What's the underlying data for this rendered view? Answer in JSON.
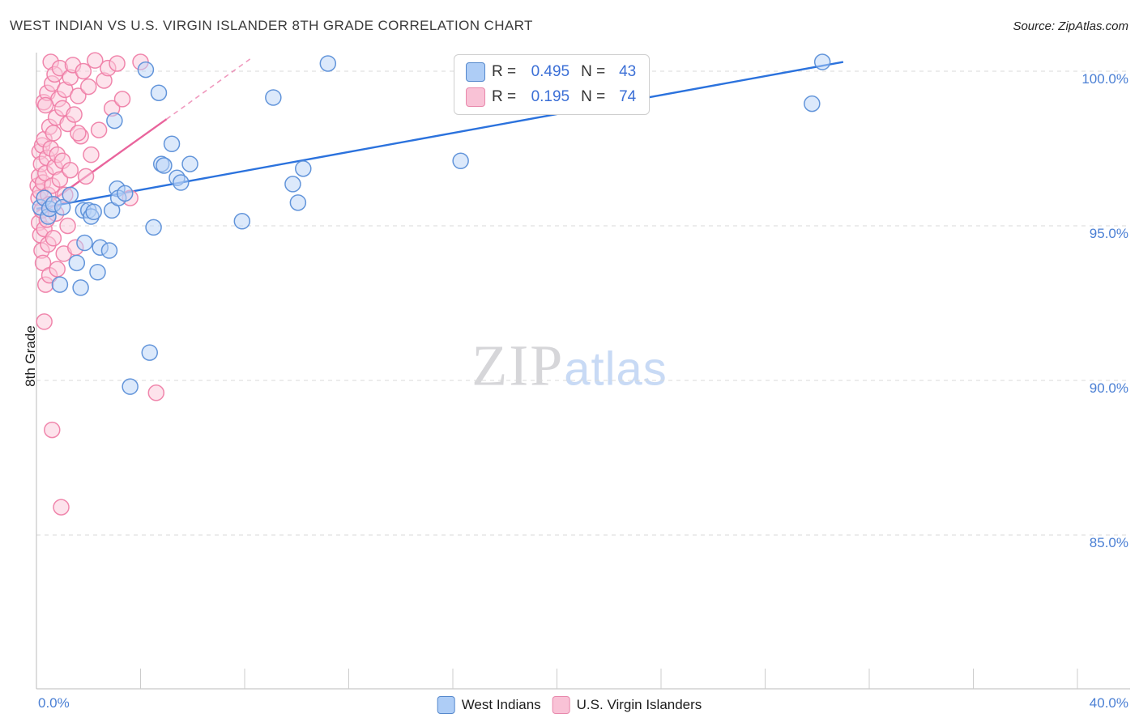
{
  "header": {
    "title": "WEST INDIAN VS U.S. VIRGIN ISLANDER 8TH GRADE CORRELATION CHART",
    "source": "Source: ZipAtlas.com"
  },
  "top_legend": {
    "rows": [
      {
        "r_label": "R =",
        "r_value": "0.495",
        "n_label": "N =",
        "n_value": "43"
      },
      {
        "r_label": "R =",
        "r_value": "0.195",
        "n_label": "N =",
        "n_value": "74"
      }
    ]
  },
  "axes": {
    "ylabel": "8th Grade",
    "x_tick_left": "0.0%",
    "x_tick_right": "40.0%",
    "y_tick_labels": [
      "100.0%",
      "95.0%",
      "90.0%",
      "85.0%"
    ]
  },
  "bottom_legend": {
    "items": [
      {
        "label": "West Indians"
      },
      {
        "label": "U.S. Virgin Islanders"
      }
    ]
  },
  "watermark": {
    "zip": "ZIP",
    "atlas": "atlas"
  },
  "chart_data": {
    "type": "scatter",
    "title": "WEST INDIAN VS U.S. VIRGIN ISLANDER 8TH GRADE CORRELATION CHART",
    "xlabel": "",
    "ylabel": "8th Grade",
    "xlim": [
      0,
      40
    ],
    "ylim": [
      80,
      100.5
    ],
    "x_tick_labels": [
      "0.0%",
      "40.0%"
    ],
    "y_gridlines": [
      100,
      95,
      90,
      85
    ],
    "grid": "horizontal-dashed",
    "legend_position": "bottom-center",
    "series": [
      {
        "name": "U.S. Virgin Islanders",
        "R": 0.195,
        "N": 74,
        "stroke": "#ef7fa8",
        "fill": "#fbc7da",
        "line_color": "#e9649c",
        "trend": {
          "x1": 0,
          "y1": 95.45,
          "x2": 5.0,
          "y2": 98.45
        },
        "trend_dashed": {
          "x1": 5.0,
          "y1": 98.45,
          "x2": 8.3,
          "y2": 100.45
        },
        "points": [
          [
            0.05,
            96.3
          ],
          [
            0.08,
            95.9
          ],
          [
            0.1,
            96.6
          ],
          [
            0.1,
            95.1
          ],
          [
            0.12,
            97.4
          ],
          [
            0.15,
            96.1
          ],
          [
            0.15,
            94.7
          ],
          [
            0.18,
            97.0
          ],
          [
            0.2,
            95.5
          ],
          [
            0.2,
            94.2
          ],
          [
            0.22,
            97.6
          ],
          [
            0.25,
            96.4
          ],
          [
            0.25,
            93.8
          ],
          [
            0.28,
            99.0
          ],
          [
            0.3,
            97.8
          ],
          [
            0.3,
            94.9
          ],
          [
            0.3,
            91.9
          ],
          [
            0.35,
            96.7
          ],
          [
            0.35,
            93.1
          ],
          [
            0.4,
            97.2
          ],
          [
            0.4,
            95.2
          ],
          [
            0.42,
            99.3
          ],
          [
            0.45,
            96.0
          ],
          [
            0.45,
            94.4
          ],
          [
            0.5,
            98.2
          ],
          [
            0.5,
            95.7
          ],
          [
            0.5,
            93.4
          ],
          [
            0.55,
            100.3
          ],
          [
            0.55,
            97.5
          ],
          [
            0.6,
            99.6
          ],
          [
            0.6,
            96.3
          ],
          [
            0.6,
            88.4
          ],
          [
            0.65,
            98.0
          ],
          [
            0.65,
            94.6
          ],
          [
            0.7,
            99.9
          ],
          [
            0.7,
            96.9
          ],
          [
            0.75,
            98.5
          ],
          [
            0.75,
            95.4
          ],
          [
            0.8,
            97.3
          ],
          [
            0.8,
            93.6
          ],
          [
            0.85,
            99.1
          ],
          [
            0.9,
            100.1
          ],
          [
            0.9,
            96.5
          ],
          [
            0.95,
            85.9
          ],
          [
            1.0,
            98.8
          ],
          [
            1.0,
            97.1
          ],
          [
            1.05,
            94.1
          ],
          [
            1.1,
            99.4
          ],
          [
            1.1,
            96.0
          ],
          [
            1.2,
            98.3
          ],
          [
            1.2,
            95.0
          ],
          [
            1.3,
            99.8
          ],
          [
            1.3,
            96.8
          ],
          [
            1.4,
            100.2
          ],
          [
            1.45,
            98.6
          ],
          [
            1.5,
            94.3
          ],
          [
            1.6,
            99.2
          ],
          [
            1.7,
            97.9
          ],
          [
            1.8,
            100.0
          ],
          [
            1.9,
            96.6
          ],
          [
            2.0,
            99.5
          ],
          [
            2.1,
            97.3
          ],
          [
            2.25,
            100.35
          ],
          [
            2.4,
            98.1
          ],
          [
            2.6,
            99.7
          ],
          [
            2.75,
            100.1
          ],
          [
            2.9,
            98.8
          ],
          [
            3.1,
            100.25
          ],
          [
            3.3,
            99.1
          ],
          [
            3.6,
            95.9
          ],
          [
            4.0,
            100.3
          ],
          [
            4.6,
            89.6
          ],
          [
            0.35,
            98.9
          ],
          [
            1.6,
            98.0
          ]
        ]
      },
      {
        "name": "West Indians",
        "R": 0.495,
        "N": 43,
        "stroke": "#5b8fd8",
        "fill": "#b9d3f7",
        "line_color": "#2b72dd",
        "trend": {
          "x1": 0,
          "y1": 95.55,
          "x2": 31.0,
          "y2": 100.3
        },
        "points": [
          [
            0.15,
            95.6
          ],
          [
            0.3,
            95.9
          ],
          [
            0.45,
            95.3
          ],
          [
            0.5,
            95.55
          ],
          [
            0.65,
            95.7
          ],
          [
            0.9,
            93.1
          ],
          [
            1.0,
            95.6
          ],
          [
            1.3,
            96.0
          ],
          [
            1.55,
            93.8
          ],
          [
            1.7,
            93.0
          ],
          [
            1.8,
            95.5
          ],
          [
            1.85,
            94.45
          ],
          [
            2.0,
            95.5
          ],
          [
            2.1,
            95.3
          ],
          [
            2.2,
            95.45
          ],
          [
            2.35,
            93.5
          ],
          [
            2.45,
            94.3
          ],
          [
            2.8,
            94.2
          ],
          [
            2.9,
            95.5
          ],
          [
            3.0,
            98.4
          ],
          [
            3.1,
            96.2
          ],
          [
            3.15,
            95.9
          ],
          [
            3.4,
            96.05
          ],
          [
            3.6,
            89.8
          ],
          [
            4.2,
            100.05
          ],
          [
            4.35,
            90.9
          ],
          [
            4.5,
            94.95
          ],
          [
            4.7,
            99.3
          ],
          [
            4.8,
            97.0
          ],
          [
            4.9,
            96.95
          ],
          [
            5.2,
            97.65
          ],
          [
            5.4,
            96.55
          ],
          [
            5.55,
            96.4
          ],
          [
            5.9,
            97.0
          ],
          [
            7.9,
            95.15
          ],
          [
            9.1,
            99.15
          ],
          [
            9.85,
            96.35
          ],
          [
            10.05,
            95.75
          ],
          [
            10.25,
            96.85
          ],
          [
            11.2,
            100.25
          ],
          [
            16.3,
            97.1
          ],
          [
            29.8,
            98.95
          ],
          [
            30.2,
            100.3
          ]
        ]
      }
    ]
  }
}
